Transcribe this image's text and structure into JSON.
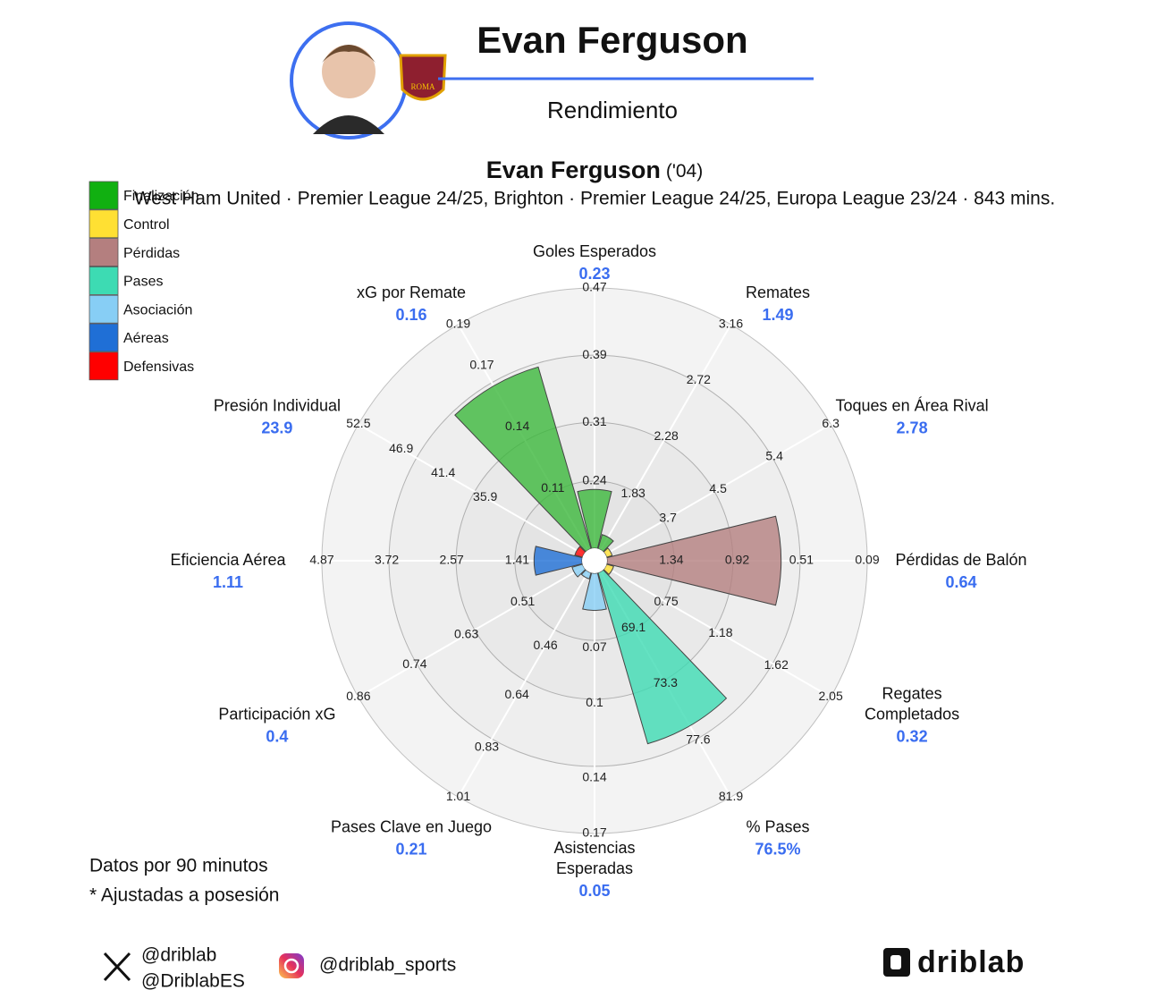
{
  "header": {
    "player": "Evan Ferguson",
    "section": "Rendimiento",
    "badge_text": "ROMA"
  },
  "chart_data": {
    "type": "polar_bar",
    "title": "Evan Ferguson",
    "title_suffix": "('04)",
    "subtitle": "West Ham United · Premier League 24/25, Brighton · Premier League 24/25, Europa League 23/24 · 843 mins.",
    "legend": [
      {
        "name": "Finalización",
        "color": "#11b011"
      },
      {
        "name": "Control",
        "color": "#ffe033"
      },
      {
        "name": "Pérdidas",
        "color": "#b47f7f"
      },
      {
        "name": "Pases",
        "color": "#3ddbb3"
      },
      {
        "name": "Asociación",
        "color": "#87cef5"
      },
      {
        "name": "Aéreas",
        "color": "#1f6fd6"
      },
      {
        "name": "Defensivas",
        "color": "#ff0000"
      }
    ],
    "axes": [
      {
        "label": [
          "Goles Esperados"
        ],
        "value": 0.23,
        "color": "#3cb83c",
        "rlim": [
          0.16,
          0.47
        ],
        "ticks": [
          0.24,
          0.31,
          0.39,
          0.47
        ]
      },
      {
        "label": [
          "Remates"
        ],
        "value": 1.49,
        "color": "#3cb83c",
        "rlim": [
          1.39,
          3.16
        ],
        "ticks": [
          1.83,
          2.28,
          2.72,
          3.16
        ]
      },
      {
        "label": [
          "Toques en Área Rival"
        ],
        "value": 2.78,
        "color": "#ffe033",
        "rlim": [
          2.7,
          6.3
        ],
        "ticks": [
          3.7,
          4.5,
          5.4,
          6.3
        ]
      },
      {
        "label": [
          "Pérdidas de Balón"
        ],
        "value": 0.64,
        "color": "#b47f7f",
        "rlim": [
          1.75,
          0.09
        ],
        "ticks": [
          1.34,
          0.92,
          0.51,
          0.09
        ]
      },
      {
        "label": [
          "Regates",
          "Completados"
        ],
        "value": 0.32,
        "color": "#ffe033",
        "rlim": [
          0.27,
          2.05
        ],
        "ticks": [
          0.75,
          1.18,
          1.62,
          2.05
        ]
      },
      {
        "label": [
          "% Pases"
        ],
        "value": 76.5,
        "value_label": "76.5%",
        "color": "#3ddbb3",
        "rlim": [
          64.8,
          81.9
        ],
        "ticks": [
          69.1,
          73.3,
          77.6,
          81.9
        ]
      },
      {
        "label": [
          "Asistencias",
          "Esperadas"
        ],
        "value": 0.05,
        "color": "#87cef5",
        "rlim": [
          0.03,
          0.17
        ],
        "ticks": [
          0.07,
          0.1,
          0.14,
          0.17
        ]
      },
      {
        "label": [
          "Pases Clave en Juego"
        ],
        "value": 0.21,
        "color": "#87cef5",
        "rlim": [
          0.19,
          1.01
        ],
        "ticks": [
          0.46,
          0.64,
          0.83,
          1.01
        ]
      },
      {
        "label": [
          "Participación xG"
        ],
        "value": 0.4,
        "color": "#87cef5",
        "rlim": [
          0.38,
          0.86
        ],
        "ticks": [
          0.51,
          0.63,
          0.74,
          0.86
        ]
      },
      {
        "label": [
          "Eficiencia Aérea"
        ],
        "value": 1.11,
        "color": "#1f6fd6",
        "rlim": [
          0.26,
          4.87
        ],
        "ticks": [
          1.41,
          2.57,
          3.72,
          4.87
        ]
      },
      {
        "label": [
          "Presión Individual"
        ],
        "value": 23.9,
        "color": "#ff0000",
        "rlim": [
          23,
          52.5
        ],
        "ticks": [
          35.9,
          41.4,
          46.9,
          52.5
        ]
      },
      {
        "label": [
          "xG por Remate"
        ],
        "value": 0.16,
        "color": "#3cb83c",
        "rlim": [
          0.08,
          0.19
        ],
        "ticks": [
          0.11,
          0.14,
          0.17,
          0.19
        ]
      }
    ]
  },
  "notes": [
    "Datos por 90 minutos",
    "* Ajustadas a posesión"
  ],
  "footer": {
    "x_handles": [
      "@driblab",
      "@DriblabES"
    ],
    "instagram": "@driblab_sports",
    "logo": "driblab"
  }
}
